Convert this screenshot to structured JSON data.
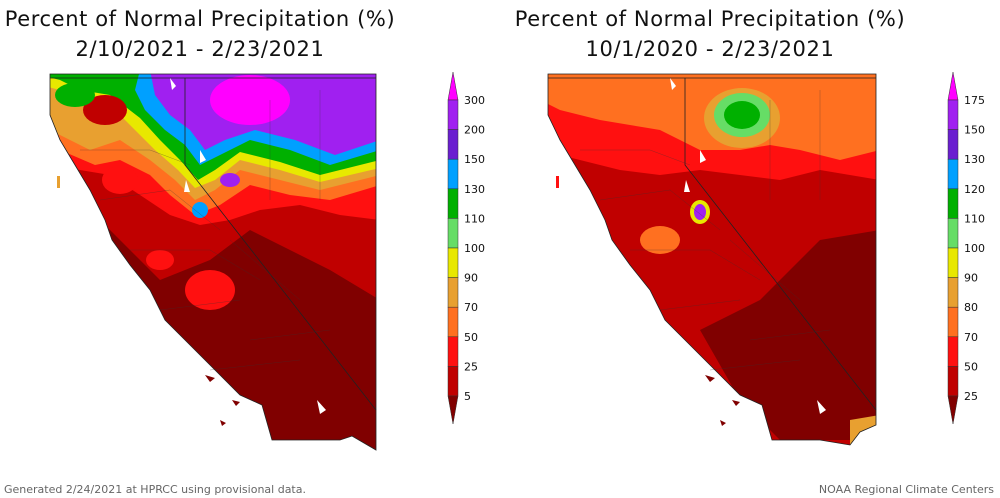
{
  "panels": [
    {
      "title_line1": "Percent of Normal Precipitation (%)",
      "title_line2": "2/10/2021 - 2/23/2021",
      "legend": {
        "labels": [
          "300",
          "200",
          "150",
          "130",
          "110",
          "100",
          "90",
          "70",
          "50",
          "25",
          "5"
        ],
        "colors": [
          "#ff00ff",
          "#a020f0",
          "#6a1fd0",
          "#00a0ff",
          "#00b000",
          "#66dd66",
          "#e8e800",
          "#e8a030",
          "#ff7020",
          "#ff1010",
          "#c00000",
          "#800000"
        ]
      }
    },
    {
      "title_line1": "Percent of Normal Precipitation (%)",
      "title_line2": "10/1/2020 - 2/23/2021",
      "legend": {
        "labels": [
          "175",
          "150",
          "130",
          "120",
          "110",
          "100",
          "90",
          "80",
          "70",
          "50",
          "25"
        ],
        "colors": [
          "#ff00ff",
          "#a020f0",
          "#6a1fd0",
          "#00a0ff",
          "#00b000",
          "#66dd66",
          "#e8e800",
          "#e8a030",
          "#ff7020",
          "#ff1010",
          "#c00000",
          "#800000"
        ]
      }
    }
  ],
  "footer": {
    "left": "Generated 2/24/2021 at HPRCC using provisional data.",
    "right": "NOAA Regional Climate Centers"
  }
}
